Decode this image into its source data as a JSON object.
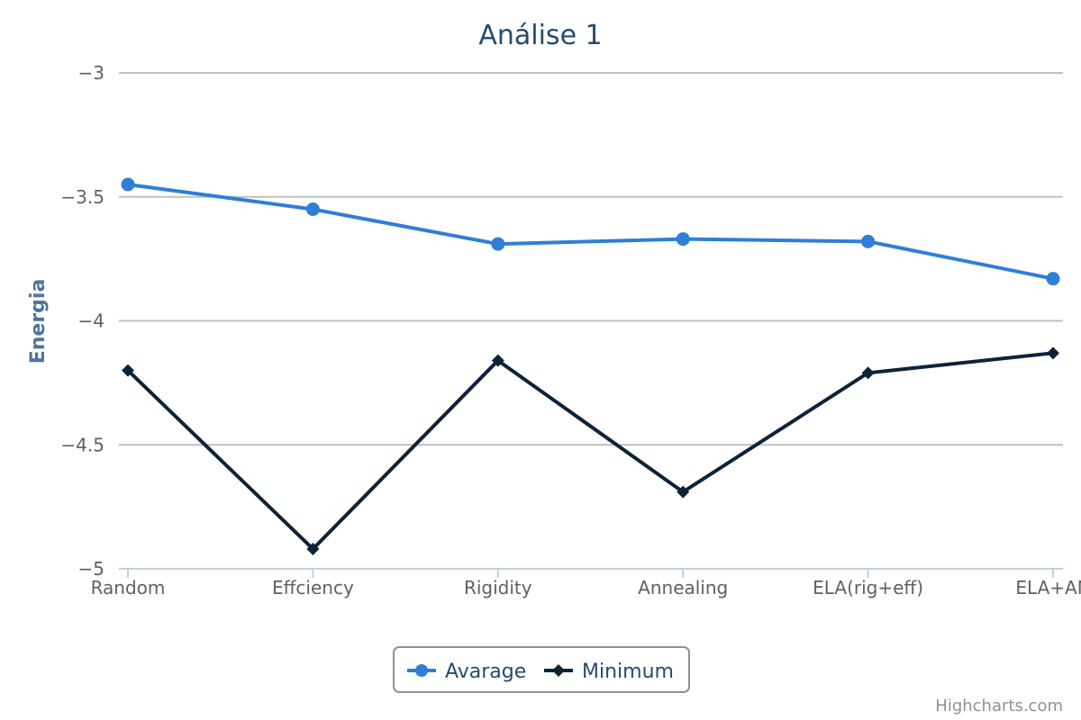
{
  "chart_data": {
    "type": "line",
    "title": "Análise 1",
    "ylabel": "Energia",
    "xlabel": "",
    "categories": [
      "Random",
      "Effciency",
      "Rigidity",
      "Annealing",
      "ELA(rig+eff)",
      "ELA+AN"
    ],
    "ylim": [
      -5,
      -3
    ],
    "yticks": [
      -3,
      -3.5,
      -4,
      -4.5,
      -5
    ],
    "ytick_labels": [
      "−3",
      "−3.5",
      "−4",
      "−4.5",
      "−5"
    ],
    "grid": true,
    "legend_position": "bottom-center",
    "series": [
      {
        "name": "Avarage",
        "values": [
          -3.45,
          -3.55,
          -3.69,
          -3.67,
          -3.68,
          -3.83
        ],
        "color": "#2f7ed8",
        "marker": "circle"
      },
      {
        "name": "Minimum",
        "values": [
          -4.2,
          -4.92,
          -4.16,
          -4.69,
          -4.21,
          -4.13
        ],
        "color": "#0d233a",
        "marker": "diamond"
      }
    ],
    "credits": "Highcharts.com"
  }
}
